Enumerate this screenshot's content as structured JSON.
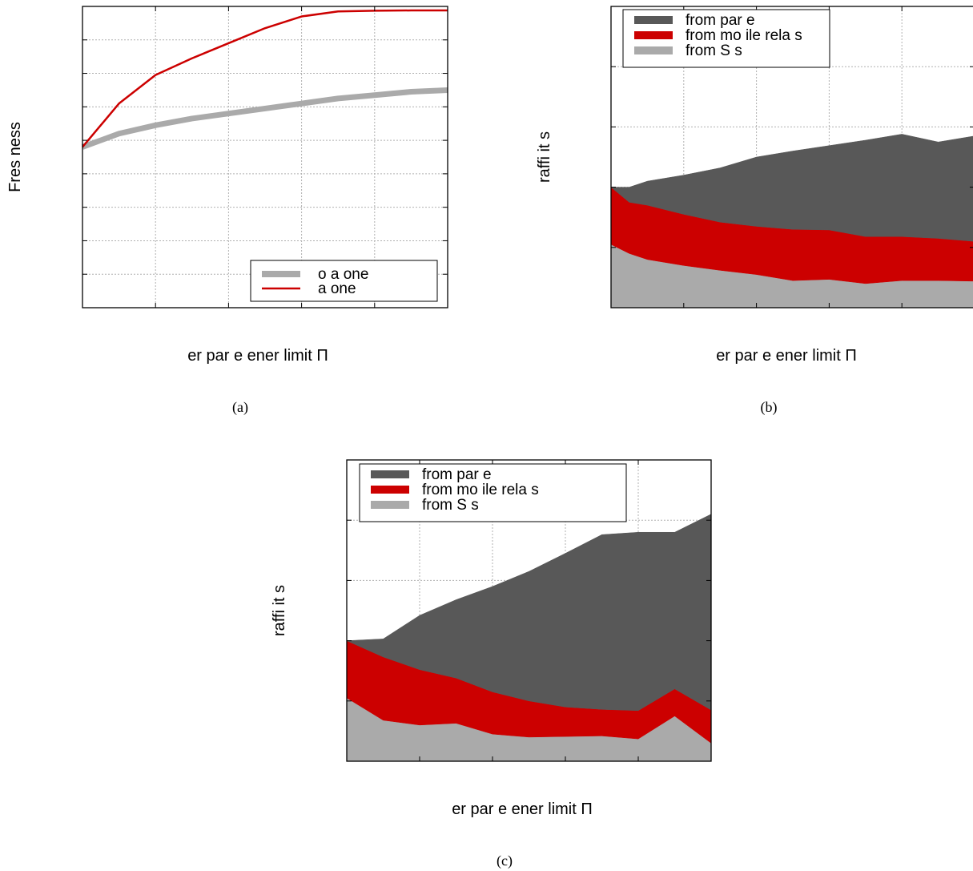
{
  "colors": {
    "dark_gray": "#585858",
    "red": "#cc0000",
    "light_gray": "#aaaaaa",
    "grid": "#b0b0b0"
  },
  "chart_data": [
    {
      "id": "a",
      "type": "line",
      "caption": "(a)",
      "xlabel": "er par e ener limit Π",
      "ylabel": "Fres ness",
      "xlim": [
        0,
        10
      ],
      "ylim": [
        0,
        9
      ],
      "grid": true,
      "legend_position": "bottom-right",
      "legend": [
        "o a one",
        "a one"
      ],
      "series": [
        {
          "name": "o a one",
          "color": "#aaaaaa",
          "width": 7,
          "x": [
            0,
            1,
            2,
            3,
            4,
            5,
            6,
            7,
            8,
            9,
            10
          ],
          "y": [
            4.8,
            5.2,
            5.45,
            5.65,
            5.8,
            5.95,
            6.1,
            6.25,
            6.35,
            6.45,
            6.5
          ]
        },
        {
          "name": "a one",
          "color": "#cc0000",
          "width": 2.5,
          "x": [
            0,
            1,
            2,
            3,
            4,
            5,
            6,
            7,
            8,
            9,
            10
          ],
          "y": [
            4.8,
            6.1,
            6.95,
            7.45,
            7.9,
            8.35,
            8.7,
            8.85,
            8.87,
            8.88,
            8.88
          ]
        }
      ]
    },
    {
      "id": "b",
      "type": "area",
      "caption": "(b)",
      "xlabel": "er par e ener limit Π",
      "ylabel": "raffi it s",
      "xlim": [
        0,
        10
      ],
      "ylim": [
        0,
        5
      ],
      "grid": true,
      "legend_position": "top-left",
      "legend": [
        "from par e",
        "from mo ile rela s",
        "from S s"
      ],
      "x": [
        0,
        0.5,
        1,
        2,
        3,
        4,
        5,
        6,
        7,
        8,
        9,
        10
      ],
      "series": [
        {
          "name": "from S s",
          "color": "#aaaaaa",
          "values": [
            1.05,
            0.9,
            0.8,
            0.7,
            0.62,
            0.55,
            0.45,
            0.47,
            0.4,
            0.45,
            0.45,
            0.44
          ]
        },
        {
          "name": "from mo ile rela s",
          "color": "#cc0000",
          "values": [
            0.95,
            0.85,
            0.9,
            0.85,
            0.8,
            0.8,
            0.85,
            0.82,
            0.78,
            0.73,
            0.7,
            0.66
          ]
        },
        {
          "name": "from par e",
          "color": "#585858",
          "values": [
            0.0,
            0.25,
            0.4,
            0.65,
            0.9,
            1.15,
            1.3,
            1.4,
            1.6,
            1.7,
            1.6,
            1.75
          ]
        }
      ]
    },
    {
      "id": "c",
      "type": "area",
      "caption": "(c)",
      "xlabel": "er par e ener limit Π",
      "ylabel": "raffi it s",
      "xlim": [
        0,
        10
      ],
      "ylim": [
        0,
        5
      ],
      "grid": true,
      "legend_position": "top-left",
      "legend": [
        "from par e",
        "from mo ile rela s",
        "from S s"
      ],
      "x": [
        0,
        1,
        2,
        3,
        4,
        5,
        6,
        7,
        8,
        9,
        10
      ],
      "series": [
        {
          "name": "from S s",
          "color": "#aaaaaa",
          "values": [
            1.05,
            0.68,
            0.6,
            0.63,
            0.45,
            0.4,
            0.41,
            0.42,
            0.37,
            0.75,
            0.3
          ]
        },
        {
          "name": "from mo ile rela s",
          "color": "#cc0000",
          "values": [
            0.95,
            1.05,
            0.92,
            0.75,
            0.7,
            0.6,
            0.49,
            0.44,
            0.47,
            0.45,
            0.55
          ]
        },
        {
          "name": "from par e",
          "color": "#585858",
          "values": [
            0.0,
            0.3,
            0.9,
            1.3,
            1.75,
            2.15,
            2.55,
            2.9,
            2.96,
            2.6,
            3.25
          ]
        }
      ]
    }
  ]
}
